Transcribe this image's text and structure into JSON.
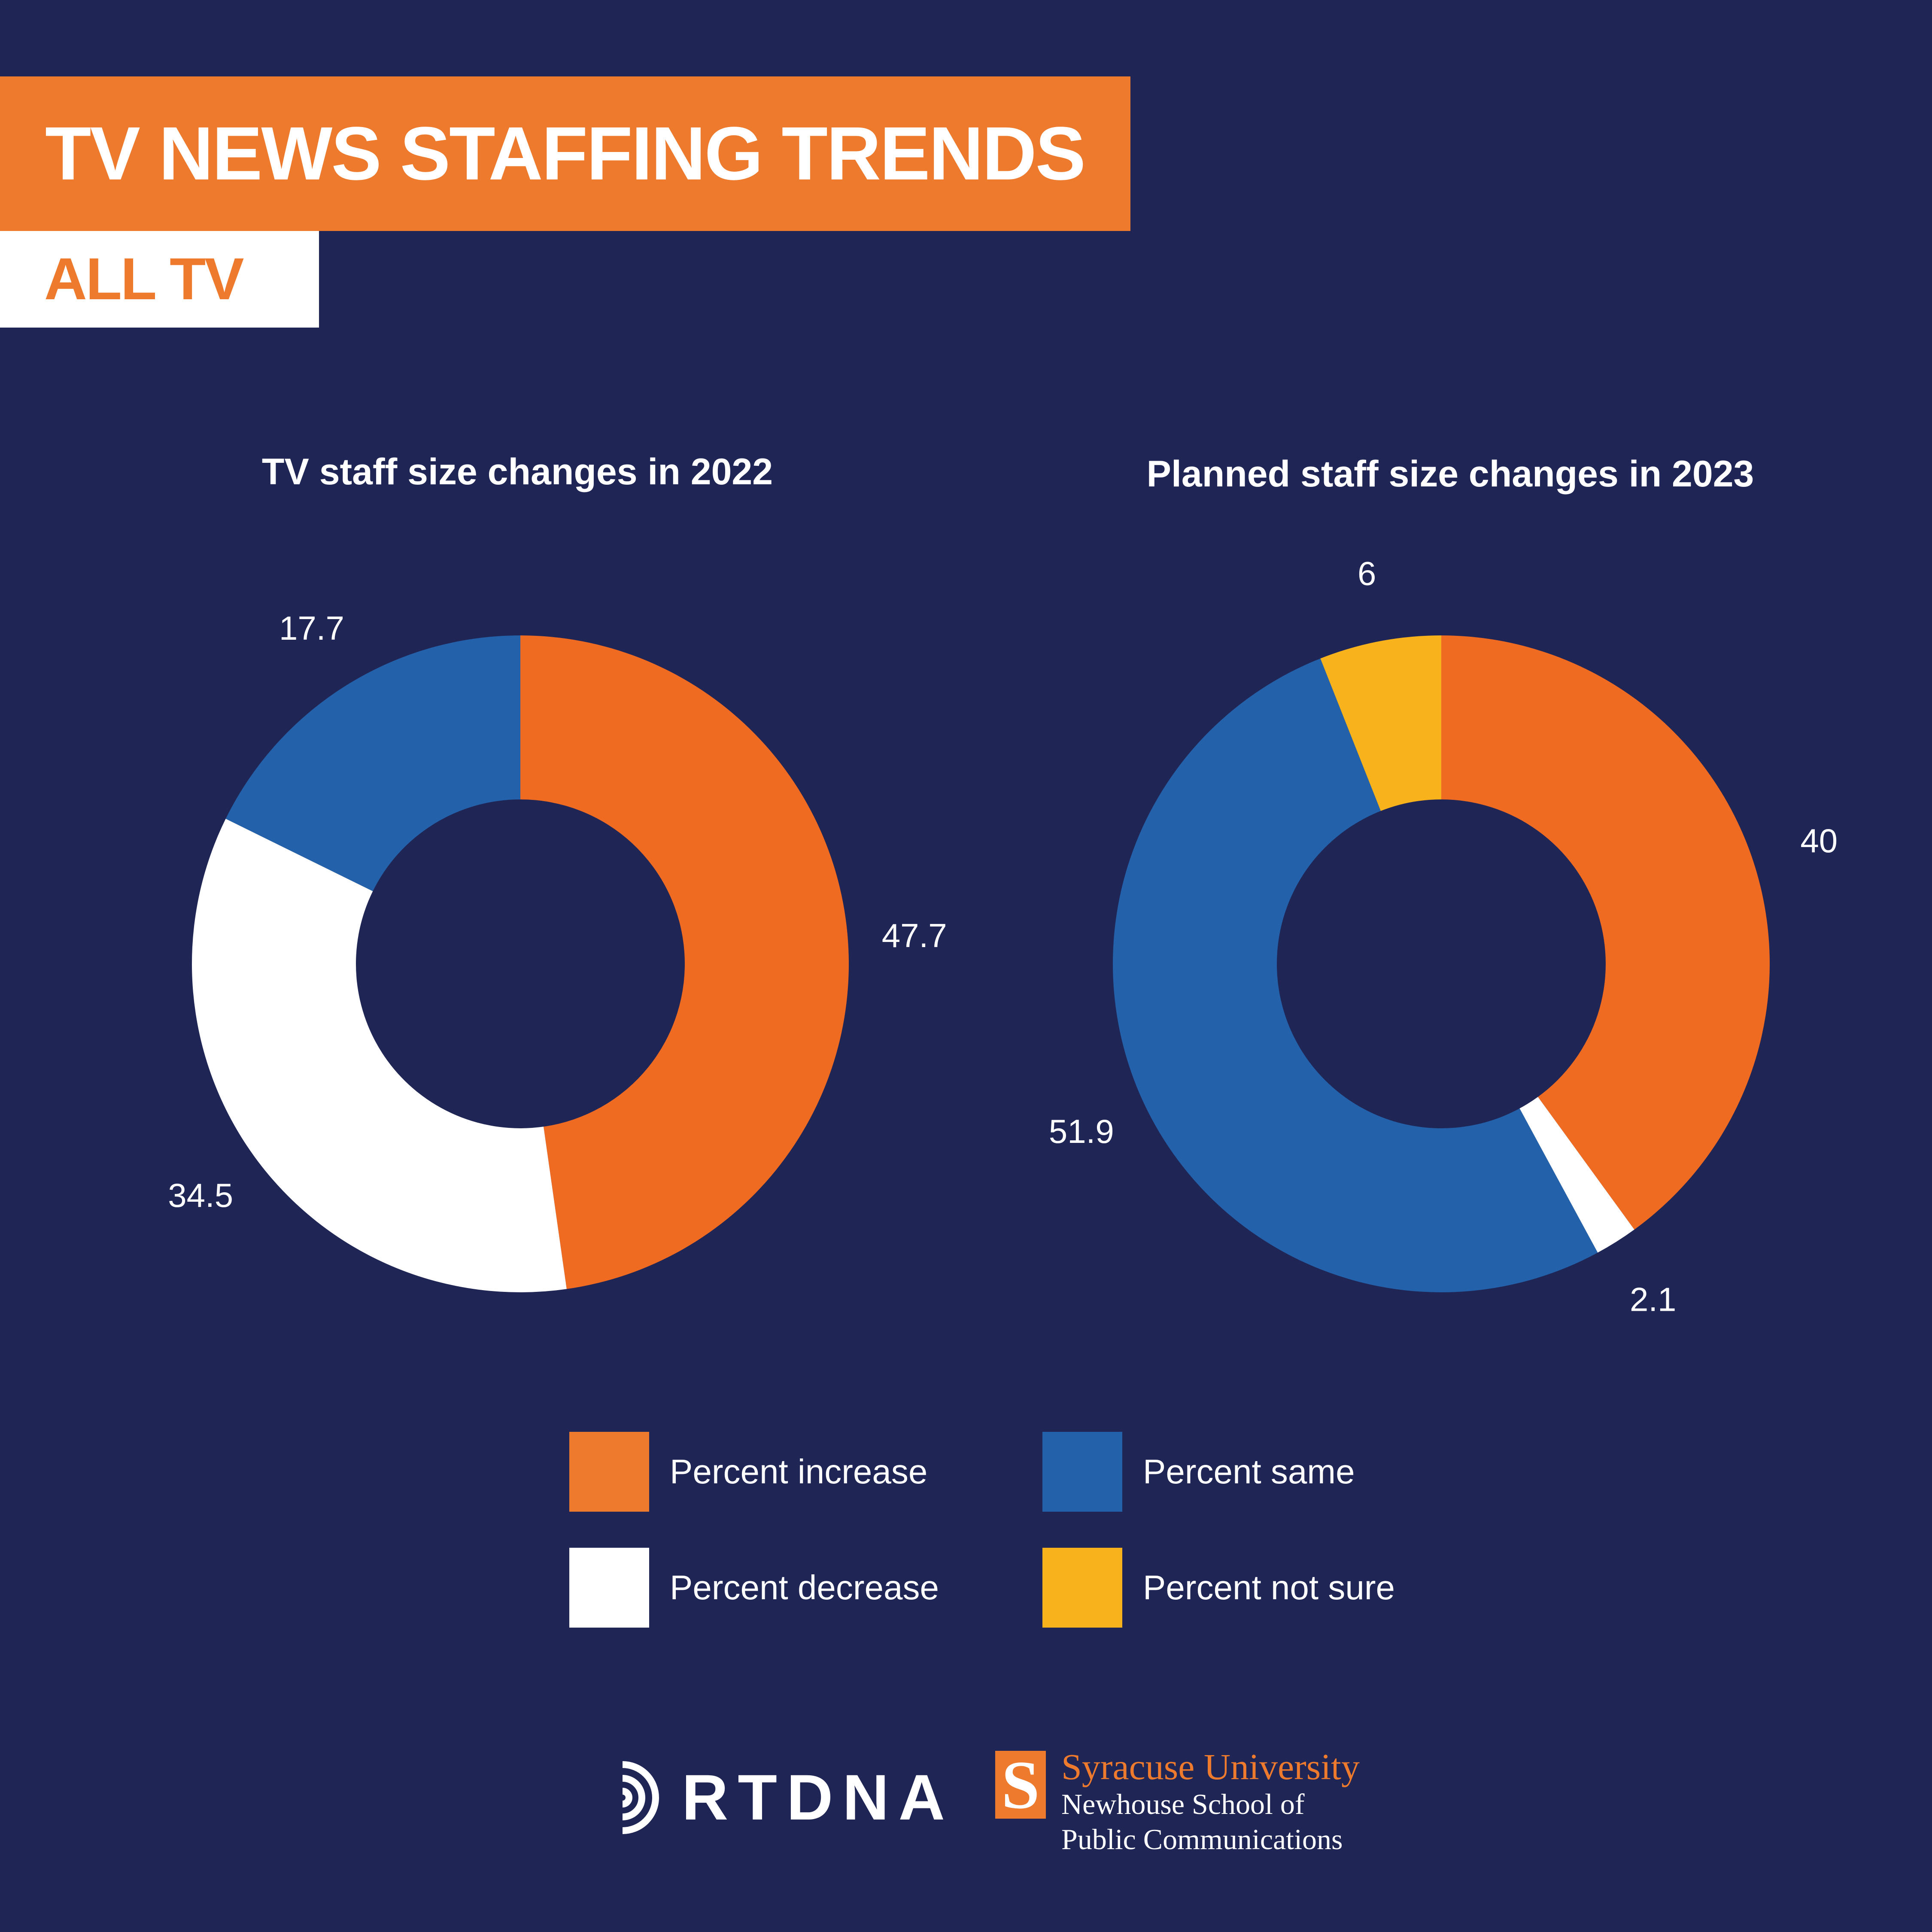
{
  "header": {
    "title": "TV NEWS STAFFING TRENDS",
    "subtitle": "ALL TV"
  },
  "colors": {
    "background": "#1f2555",
    "increase": "#f06b22",
    "same": "#2361aa",
    "decrease": "#ffffff",
    "not_sure": "#f8b31c",
    "accent": "#ee7a2d"
  },
  "chart_data": [
    {
      "type": "pie",
      "title": "TV staff size changes in 2022",
      "categories": [
        "Percent increase",
        "Percent decrease",
        "Percent same"
      ],
      "values": [
        47.7,
        34.5,
        17.7
      ],
      "labels": [
        "47.7",
        "34.5",
        "17.7"
      ]
    },
    {
      "type": "pie",
      "title": "Planned staff size changes in 2023",
      "categories": [
        "Percent increase",
        "Percent decrease",
        "Percent same",
        "Percent not sure"
      ],
      "values": [
        40,
        2.1,
        51.9,
        6
      ],
      "labels": [
        "40",
        "2.1",
        "51.9",
        "6"
      ]
    }
  ],
  "legend": {
    "items": [
      {
        "label": "Percent increase",
        "color": "#ee7a2d"
      },
      {
        "label": "Percent same",
        "color": "#2361aa"
      },
      {
        "label": "Percent decrease",
        "color": "#ffffff"
      },
      {
        "label": "Percent not sure",
        "color": "#f8b31c"
      }
    ]
  },
  "logos": {
    "rtdna": "RTDNA",
    "su_initial": "S",
    "su_name": "Syracuse University",
    "su_school_line1": "Newhouse School of",
    "su_school_line2": "Public Communications"
  }
}
